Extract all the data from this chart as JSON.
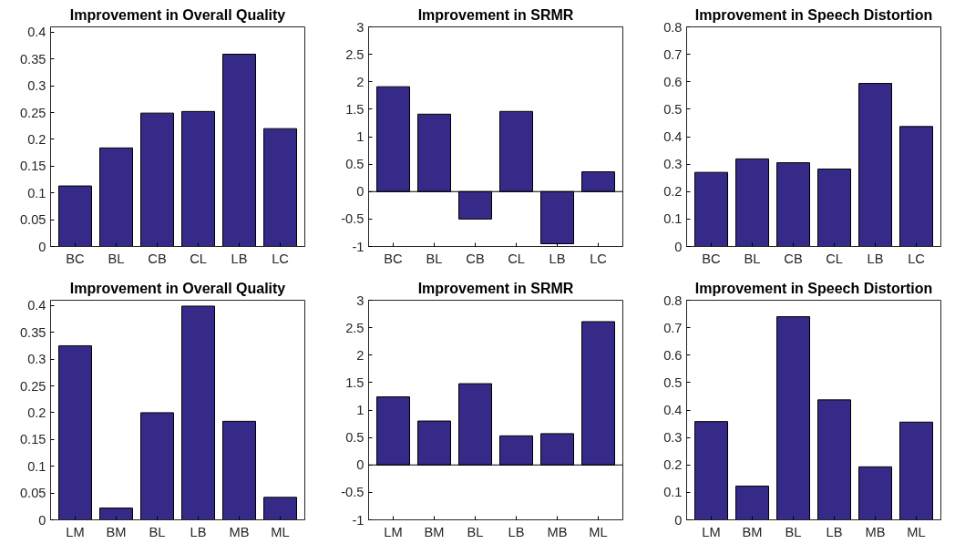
{
  "chart_data": [
    {
      "type": "bar",
      "title": "Improvement in Overall Quality",
      "categories": [
        "BC",
        "BL",
        "CB",
        "CL",
        "LB",
        "LC"
      ],
      "values": [
        0.113,
        0.184,
        0.249,
        0.252,
        0.359,
        0.22
      ],
      "color": "#352a87",
      "ylim": [
        0,
        0.41
      ],
      "yticks": [
        0,
        0.05,
        0.1,
        0.15,
        0.2,
        0.25,
        0.3,
        0.35,
        0.4
      ],
      "grid": false
    },
    {
      "type": "bar",
      "title": "Improvement in SRMR",
      "categories": [
        "BC",
        "BL",
        "CB",
        "CL",
        "LB",
        "LC"
      ],
      "values": [
        1.91,
        1.41,
        -0.5,
        1.46,
        -0.95,
        0.36
      ],
      "color": "#352a87",
      "ylim": [
        -1,
        3
      ],
      "yticks": [
        -1,
        -0.5,
        0,
        0.5,
        1,
        1.5,
        2,
        2.5,
        3
      ],
      "grid": false,
      "ref_lines": [
        {
          "axis": "y",
          "value": 0,
          "color": "#000000"
        }
      ]
    },
    {
      "type": "bar",
      "title": "Improvement in Speech Distortion",
      "categories": [
        "BC",
        "BL",
        "CB",
        "CL",
        "LB",
        "LC"
      ],
      "values": [
        0.27,
        0.319,
        0.305,
        0.282,
        0.594,
        0.437
      ],
      "color": "#352a87",
      "ylim": [
        0,
        0.8
      ],
      "yticks": [
        0,
        0.1,
        0.2,
        0.3,
        0.4,
        0.5,
        0.6,
        0.7,
        0.8
      ],
      "grid": false
    },
    {
      "type": "bar",
      "title": "Improvement in Overall Quality",
      "categories": [
        "LM",
        "BM",
        "BL",
        "LB",
        "MB",
        "ML"
      ],
      "values": [
        0.325,
        0.022,
        0.2,
        0.399,
        0.184,
        0.042
      ],
      "color": "#352a87",
      "ylim": [
        0,
        0.41
      ],
      "yticks": [
        0,
        0.05,
        0.1,
        0.15,
        0.2,
        0.25,
        0.3,
        0.35,
        0.4
      ],
      "grid": false
    },
    {
      "type": "bar",
      "title": "Improvement in SRMR",
      "categories": [
        "LM",
        "BM",
        "BL",
        "LB",
        "MB",
        "ML"
      ],
      "values": [
        1.24,
        0.8,
        1.48,
        0.53,
        0.57,
        2.61
      ],
      "color": "#352a87",
      "ylim": [
        -1,
        3
      ],
      "yticks": [
        -1,
        -0.5,
        0,
        0.5,
        1,
        1.5,
        2,
        2.5,
        3
      ],
      "grid": false,
      "ref_lines": [
        {
          "axis": "y",
          "value": 0,
          "color": "#000000"
        }
      ]
    },
    {
      "type": "bar",
      "title": "Improvement in Speech Distortion",
      "categories": [
        "LM",
        "BM",
        "BL",
        "LB",
        "MB",
        "ML"
      ],
      "values": [
        0.358,
        0.123,
        0.74,
        0.437,
        0.193,
        0.356
      ],
      "color": "#352a87",
      "ylim": [
        0,
        0.8
      ],
      "yticks": [
        0,
        0.1,
        0.2,
        0.3,
        0.4,
        0.5,
        0.6,
        0.7,
        0.8
      ],
      "grid": false
    }
  ]
}
